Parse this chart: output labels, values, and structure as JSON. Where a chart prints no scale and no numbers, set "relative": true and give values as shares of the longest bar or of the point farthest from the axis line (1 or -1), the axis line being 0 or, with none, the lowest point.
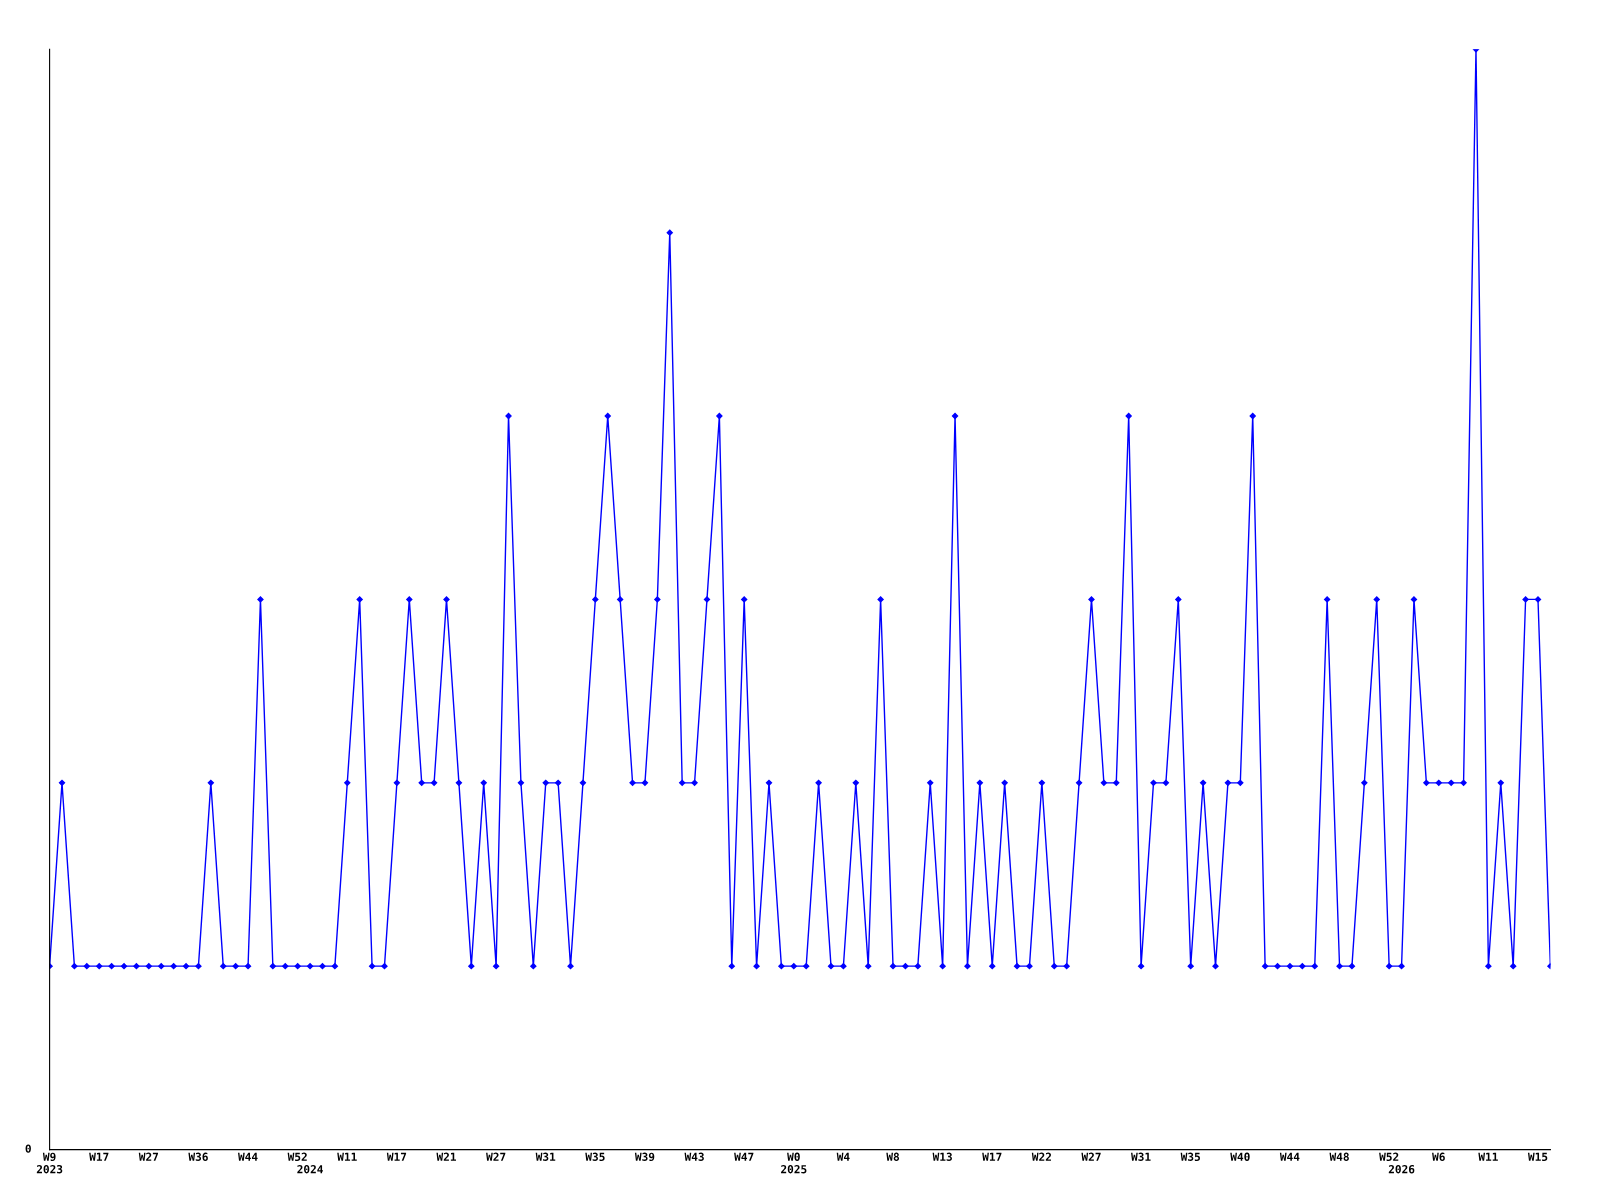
{
  "chart_data": {
    "type": "line",
    "relative": true,
    "annotations": [
      "0"
    ],
    "marker": "diamond",
    "line_style": "solid",
    "grid": false,
    "legend": false,
    "categories": [
      "W9\n2023",
      null,
      null,
      null,
      "W17",
      null,
      null,
      null,
      "W27",
      null,
      null,
      null,
      "W36",
      null,
      null,
      null,
      "W44",
      null,
      null,
      null,
      "W52",
      "\n2024",
      null,
      null,
      "W11",
      null,
      null,
      null,
      "W17",
      null,
      null,
      null,
      "W21",
      null,
      null,
      null,
      "W27",
      null,
      null,
      null,
      "W31",
      null,
      null,
      null,
      "W35",
      null,
      null,
      null,
      "W39",
      null,
      null,
      null,
      "W43",
      null,
      null,
      null,
      "W47",
      null,
      null,
      null,
      "W0\n2025",
      null,
      null,
      null,
      "W4",
      null,
      null,
      null,
      "W8",
      null,
      null,
      null,
      "W13",
      null,
      null,
      null,
      "W17",
      null,
      null,
      null,
      "W22",
      null,
      null,
      null,
      "W27",
      null,
      null,
      null,
      "W31",
      null,
      null,
      null,
      "W35",
      null,
      null,
      null,
      "W40",
      null,
      null,
      null,
      "W44",
      null,
      null,
      null,
      "W48",
      null,
      null,
      null,
      "W52",
      "\n2026",
      null,
      null,
      "W6",
      null,
      null,
      null,
      "W11",
      null,
      null,
      null,
      "W15",
      null
    ],
    "series": [
      {
        "color": "#0000ff",
        "values": [
          0.1667,
          0.3333,
          0.1667,
          0.1667,
          0.1667,
          0.1667,
          0.1667,
          0.1667,
          0.1667,
          0.1667,
          0.1667,
          0.1667,
          0.1667,
          0.3333,
          0.1667,
          0.1667,
          0.1667,
          0.5,
          0.1667,
          0.1667,
          0.1667,
          0.1667,
          0.1667,
          0.1667,
          0.3333,
          0.5,
          0.1667,
          0.1667,
          0.3333,
          0.5,
          0.3333,
          0.3333,
          0.5,
          0.3333,
          0.1667,
          0.3333,
          0.1667,
          0.6667,
          0.3333,
          0.1667,
          0.3333,
          0.3333,
          0.1667,
          0.3333,
          0.5,
          0.6667,
          0.5,
          0.3333,
          0.3333,
          0.5,
          0.8333,
          0.3333,
          0.3333,
          0.5,
          0.6667,
          0.1667,
          0.5,
          0.1667,
          0.3333,
          0.1667,
          0.1667,
          0.1667,
          0.3333,
          0.1667,
          0.1667,
          0.3333,
          0.1667,
          0.5,
          0.1667,
          0.1667,
          0.1667,
          0.3333,
          0.1667,
          0.6667,
          0.1667,
          0.3333,
          0.1667,
          0.3333,
          0.1667,
          0.1667,
          0.3333,
          0.1667,
          0.1667,
          0.3333,
          0.5,
          0.3333,
          0.3333,
          0.6667,
          0.1667,
          0.3333,
          0.3333,
          0.5,
          0.1667,
          0.3333,
          0.1667,
          0.3333,
          0.3333,
          0.6667,
          0.1667,
          0.1667,
          0.1667,
          0.1667,
          0.1667,
          0.5,
          0.1667,
          0.1667,
          0.3333,
          0.5,
          0.1667,
          0.1667,
          0.5,
          0.3333,
          0.3333,
          0.3333,
          0.3333,
          1,
          0.1667,
          0.3333,
          0.1667,
          0.5,
          0.5,
          0.1667
        ]
      }
    ]
  }
}
